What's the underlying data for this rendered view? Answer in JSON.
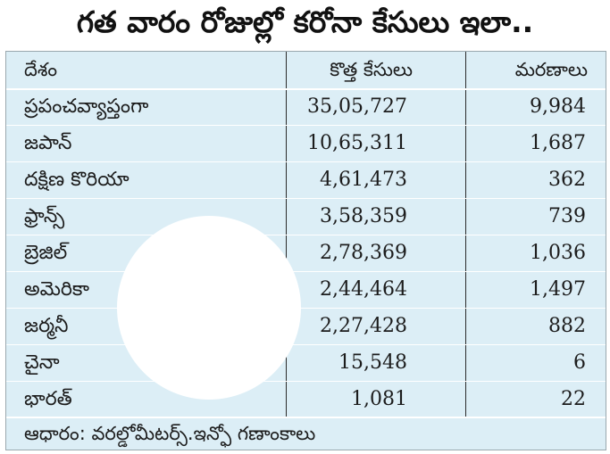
{
  "title": "గత వారం రోజుల్లో కరోనా కేసులు ఇలా..",
  "table": {
    "headers": [
      "దేశం",
      "కొత్త కేసులు",
      "మరణాలు"
    ],
    "rows": [
      {
        "country": "ప్రపంచవ్యాప్తంగా",
        "new_cases": "35,05,727",
        "deaths": "9,984"
      },
      {
        "country": "జపాన్",
        "new_cases": "10,65,311",
        "deaths": "1,687"
      },
      {
        "country": "దక్షిణ కొరియా",
        "new_cases": "4,61,473",
        "deaths": "362"
      },
      {
        "country": "ఫ్రాన్స్",
        "new_cases": "3,58,359",
        "deaths": "739"
      },
      {
        "country": "బ్రెజిల్",
        "new_cases": "2,78,369",
        "deaths": "1,036"
      },
      {
        "country": "అమెరికా",
        "new_cases": "2,44,464",
        "deaths": "1,497"
      },
      {
        "country": "జర్మనీ",
        "new_cases": "2,27,428",
        "deaths": "882"
      },
      {
        "country": "చైనా",
        "new_cases": "15,548",
        "deaths": "6"
      },
      {
        "country": "భారత్",
        "new_cases": "1,081",
        "deaths": "22"
      }
    ]
  },
  "footer": "ఆధారం: వరల్డోమీటర్స్.ఇన్ఫో గణాంకాలు",
  "colors": {
    "panel": "#dceef6",
    "separator": "#2b2b2b"
  }
}
